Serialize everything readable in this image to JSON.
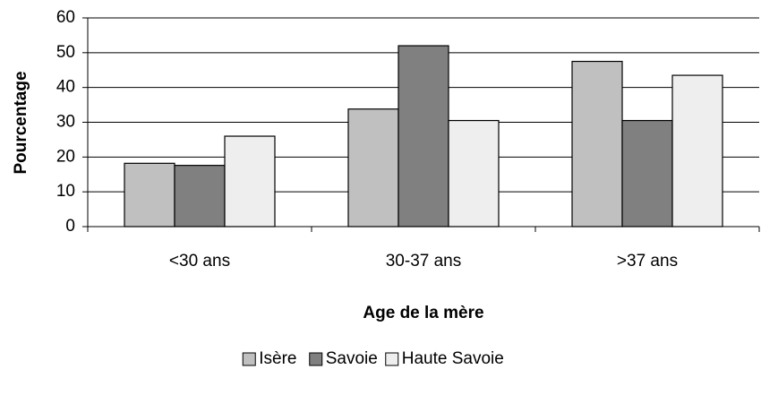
{
  "chart_data": {
    "type": "bar",
    "categories": [
      "<30 ans",
      "30-37 ans",
      ">37 ans"
    ],
    "series": [
      {
        "name": "Isère",
        "color": "#c0c0c0",
        "values": [
          18.2,
          33.8,
          47.5
        ]
      },
      {
        "name": "Savoie",
        "color": "#808080",
        "values": [
          17.6,
          52,
          30.5
        ]
      },
      {
        "name": "Haute Savoie",
        "color": "#eeeeee",
        "values": [
          26,
          30.5,
          43.5
        ]
      }
    ],
    "x_label": "Age de la mère",
    "y_label": "Pourcentage",
    "ylim": [
      0,
      60
    ],
    "yticks": [
      0,
      10,
      20,
      30,
      40,
      50,
      60
    ],
    "grid": true,
    "legend": "bottom"
  }
}
